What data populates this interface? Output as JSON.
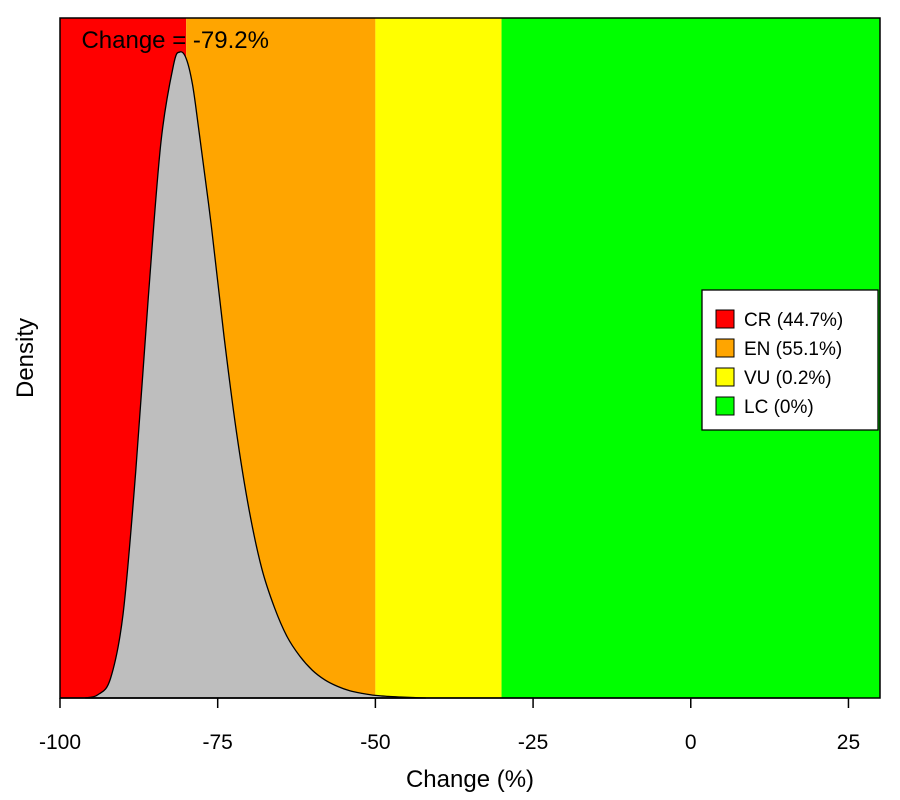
{
  "chart_data": {
    "type": "area",
    "title": "",
    "xlabel": "Change (%)",
    "ylabel": "Density",
    "xlim": [
      -100,
      30
    ],
    "x_ticks": [
      -100,
      -75,
      -50,
      -25,
      0,
      25
    ],
    "x_tick_labels": [
      "-100",
      "-75",
      "-50",
      "-25",
      "0",
      "25"
    ],
    "y_ticks_shown": false,
    "annotation": "Change = -79.2%",
    "bands": [
      {
        "label": "CR (44.7%)",
        "from": -100,
        "to": -80,
        "color": "#ff0000"
      },
      {
        "label": "EN (55.1%)",
        "from": -80,
        "to": -50,
        "color": "#ffa500"
      },
      {
        "label": "VU (0.2%)",
        "from": -50,
        "to": -30,
        "color": "#ffff00"
      },
      {
        "label": "LC (0%)",
        "from": -30,
        "to": 30,
        "color": "#00ff00"
      }
    ],
    "legend_position": "right",
    "density_fill_color": "#bebebe",
    "density_curve": {
      "x": [
        -96,
        -94,
        -92,
        -90,
        -88,
        -86,
        -84,
        -82,
        -81,
        -80,
        -79,
        -78,
        -76,
        -74,
        -72,
        -70,
        -68,
        -66,
        -64,
        -62,
        -60,
        -58,
        -56,
        -54,
        -52,
        -50,
        -48,
        -46,
        -44,
        -42
      ],
      "y": [
        0.0,
        0.005,
        0.03,
        0.13,
        0.35,
        0.62,
        0.86,
        0.98,
        1.0,
        0.99,
        0.95,
        0.88,
        0.73,
        0.56,
        0.41,
        0.29,
        0.2,
        0.14,
        0.095,
        0.065,
        0.043,
        0.028,
        0.018,
        0.011,
        0.007,
        0.004,
        0.0025,
        0.0015,
        0.0007,
        0.0
      ]
    }
  }
}
